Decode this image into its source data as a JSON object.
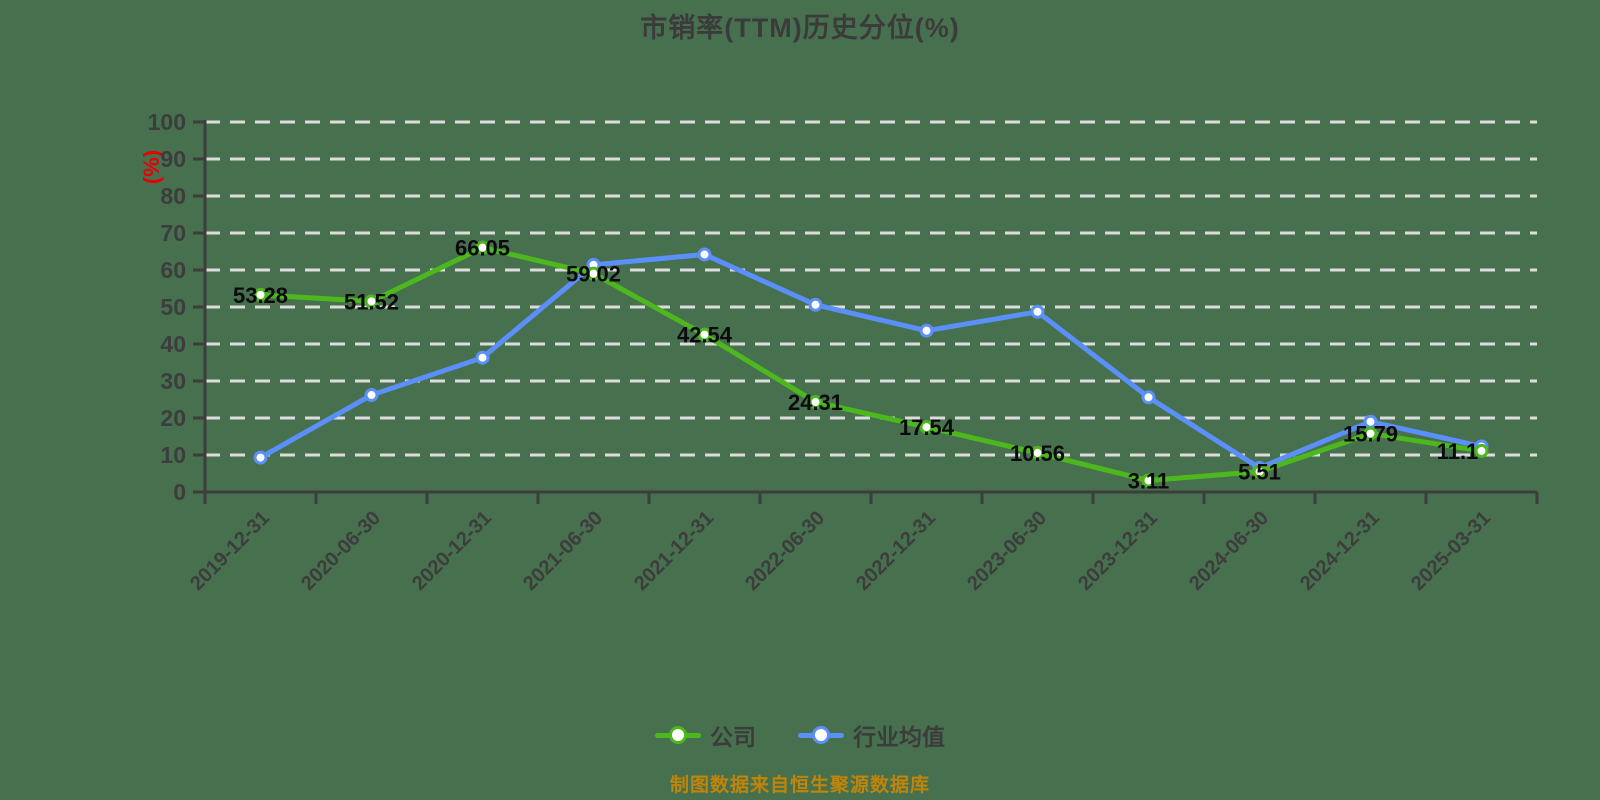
{
  "title": "市销率(TTM)历史分位(%)",
  "y_axis_unit_label": "(%)",
  "source_note": "制图数据来自恒生聚源数据库",
  "legend": {
    "items": [
      {
        "label": "公司",
        "color": "#4db81d"
      },
      {
        "label": "行业均值",
        "color": "#5b8ff9"
      }
    ]
  },
  "colors": {
    "background": "#47704f",
    "title_text": "#3b3b3b",
    "axis_text": "#3d3d3d",
    "axis_line": "#3d3d3d",
    "gridline": "#dcdcdc",
    "company_line": "#4db81d",
    "industry_line": "#5b8ff9",
    "marker_fill": "#ffffff",
    "data_label_text": "#0b0b0b",
    "unit_label_red": "#e60000",
    "source_text": "#c08508",
    "legend_text": "#3c3c3c"
  },
  "chart_data": {
    "type": "line",
    "title": "市销率(TTM)历史分位(%)",
    "categories": [
      "2019-12-31",
      "2020-06-30",
      "2020-12-31",
      "2021-06-30",
      "2021-12-31",
      "2022-06-30",
      "2022-12-31",
      "2023-06-30",
      "2023-12-31",
      "2024-06-30",
      "2024-12-31",
      "2025-03-31"
    ],
    "series": [
      {
        "name": "公司",
        "color": "#4db81d",
        "show_labels": true,
        "values": [
          53.28,
          51.52,
          66.05,
          59.02,
          42.54,
          24.31,
          17.54,
          10.56,
          3.11,
          5.51,
          15.79,
          11.1
        ]
      },
      {
        "name": "行业均值",
        "color": "#5b8ff9",
        "show_labels": false,
        "values": [
          9.3,
          26.2,
          36.3,
          61.4,
          64.2,
          50.6,
          43.6,
          48.7,
          25.6,
          6.5,
          19.0,
          12.3
        ]
      }
    ],
    "xlabel": "",
    "ylabel": "(%)",
    "ylim": [
      0,
      100
    ],
    "y_ticks": [
      0,
      10,
      20,
      30,
      40,
      50,
      60,
      70,
      80,
      90,
      100
    ],
    "grid": "horizontal-dashed",
    "legend_position": "bottom"
  }
}
